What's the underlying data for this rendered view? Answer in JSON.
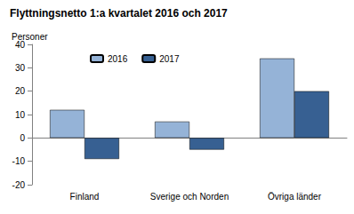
{
  "chart_data": {
    "type": "bar",
    "title": "Flyttningsnetto 1:a kvartalet 2016 och 2017",
    "ylabel": "Personer",
    "categories": [
      "Finland",
      "Sverige och Norden",
      "Övriga länder"
    ],
    "series": [
      {
        "name": "2016",
        "color": "#95b3d7",
        "values": [
          12,
          7,
          34
        ]
      },
      {
        "name": "2017",
        "color": "#376092",
        "values": [
          -9,
          -5,
          20
        ]
      }
    ],
    "ylim": [
      -20,
      40
    ],
    "yticks": [
      -20,
      -10,
      0,
      10,
      20,
      30,
      40
    ],
    "grid": false,
    "legend": "upper left"
  }
}
